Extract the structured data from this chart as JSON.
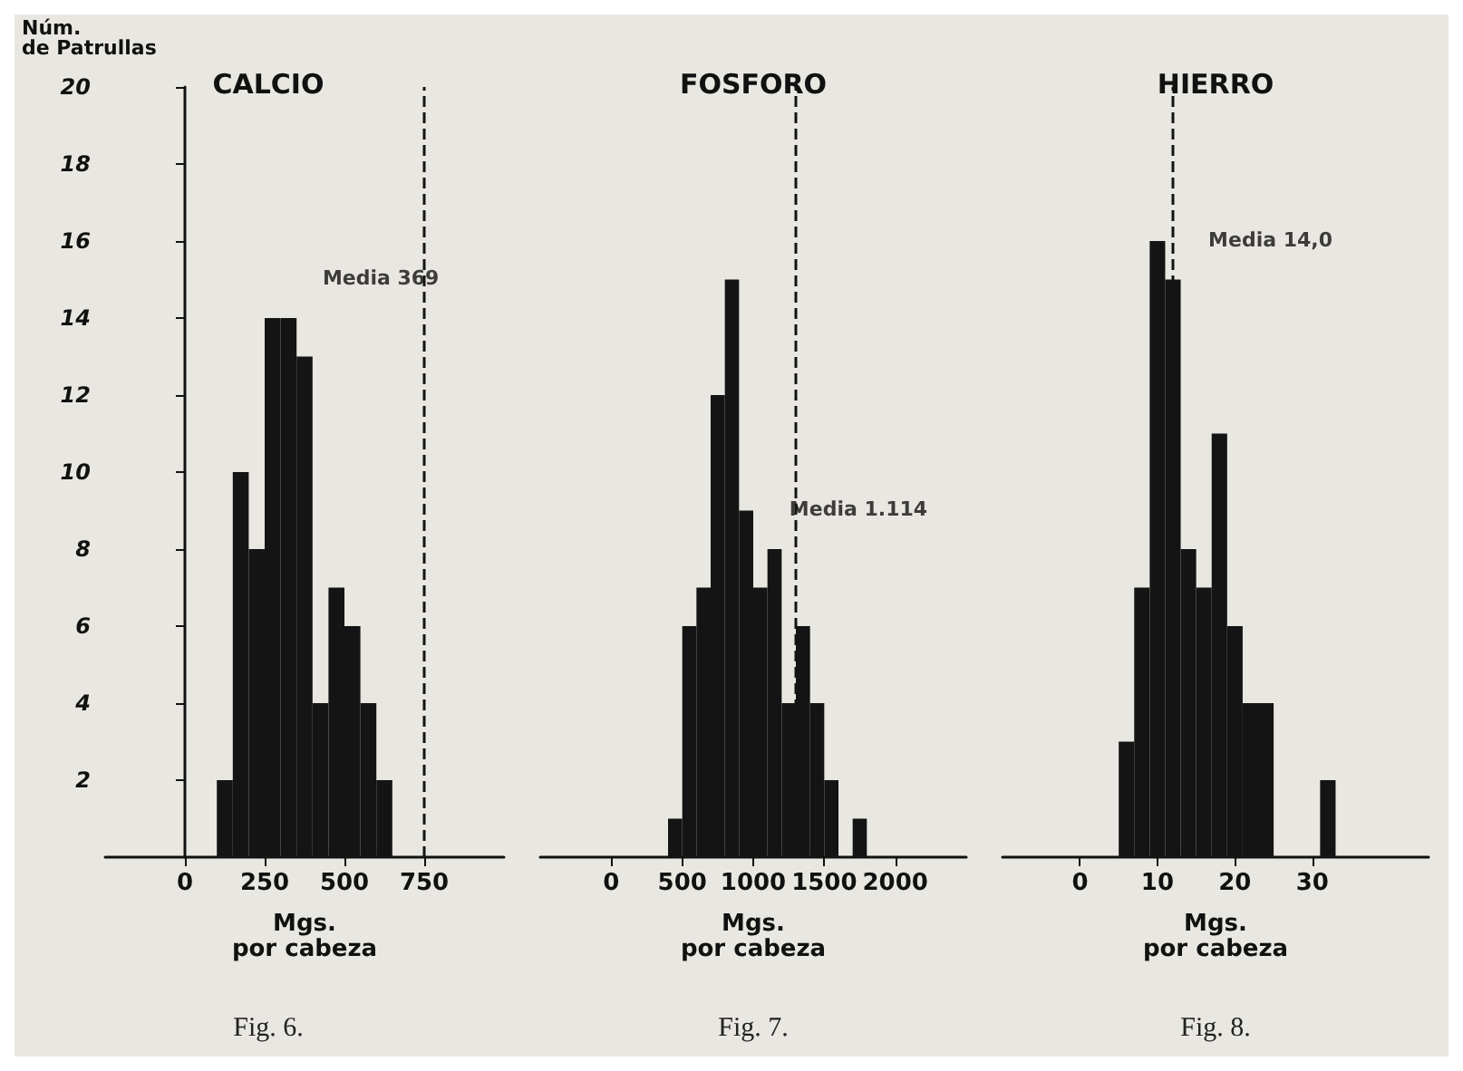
{
  "chart_data": [
    {
      "type": "histogram",
      "title": "CALCIO",
      "ylabel": "Núm.\nde Patrullas",
      "xlabel": "Mgs.\npor cabeza",
      "bins": [
        100,
        150,
        200,
        250,
        300,
        350,
        400,
        450,
        500,
        550,
        600,
        650
      ],
      "values": [
        2,
        10,
        8,
        14,
        14,
        13,
        4,
        7,
        6,
        4,
        2
      ],
      "color": "#141414",
      "xlim": [
        -250,
        1000
      ],
      "xticks": [
        0,
        250,
        500,
        750
      ],
      "ylim": [
        0,
        20
      ],
      "yticks": [
        2,
        4,
        6,
        8,
        10,
        12,
        14,
        16,
        18,
        20
      ],
      "ref_lines": [
        {
          "axis": "x",
          "value": 750,
          "line_style": "dashed",
          "color": "#141414"
        }
      ],
      "annotations": [
        {
          "text": "Media 369",
          "x": 369,
          "y": 14
        },
        "Fig. 6."
      ],
      "grid": false
    },
    {
      "type": "histogram",
      "title": "FOSFORO",
      "xlabel": "Mgs.\npor cabeza",
      "bins": [
        400,
        500,
        600,
        700,
        800,
        900,
        1000,
        1100,
        1200,
        1300,
        1400,
        1500,
        1600,
        1700,
        1800
      ],
      "values": [
        1,
        6,
        7,
        12,
        15,
        9,
        7,
        8,
        4,
        6,
        4,
        2,
        0,
        1
      ],
      "color": "#141414",
      "xlim": [
        -500,
        2500
      ],
      "xticks": [
        0,
        500,
        1000,
        1500,
        2000
      ],
      "ylim": [
        0,
        20
      ],
      "yticks": [
        2,
        4,
        6,
        8,
        10,
        12,
        14,
        16,
        18,
        20
      ],
      "tick_labels": "x",
      "ref_lines": [
        {
          "axis": "x",
          "value": 1300,
          "line_style": "dashed",
          "color": "#141414"
        }
      ],
      "annotations": [
        {
          "text": "Media 1.114",
          "x": 1114,
          "y": 8
        },
        "Fig. 7."
      ],
      "grid": false
    },
    {
      "type": "histogram",
      "title": "HIERRO",
      "xlabel": "Mgs.\npor cabeza",
      "bins": [
        5,
        7,
        9,
        11,
        13,
        15,
        17,
        19,
        21,
        23,
        25,
        27,
        29,
        31,
        33
      ],
      "values": [
        3,
        7,
        16,
        15,
        8,
        7,
        11,
        6,
        4,
        4,
        0,
        0,
        0,
        2
      ],
      "color": "#141414",
      "xlim": [
        -10,
        45
      ],
      "xticks": [
        0,
        10,
        20,
        30
      ],
      "ylim": [
        0,
        20
      ],
      "yticks": [
        2,
        4,
        6,
        8,
        10,
        12,
        14,
        16,
        18,
        20
      ],
      "tick_labels": "x",
      "ref_lines": [
        {
          "axis": "x",
          "value": 12,
          "line_style": "dashed",
          "color": "#141414"
        }
      ],
      "annotations": [
        {
          "text": "Media 14,0",
          "x": 14,
          "y": 15
        },
        "Fig. 8."
      ],
      "grid": false
    }
  ]
}
